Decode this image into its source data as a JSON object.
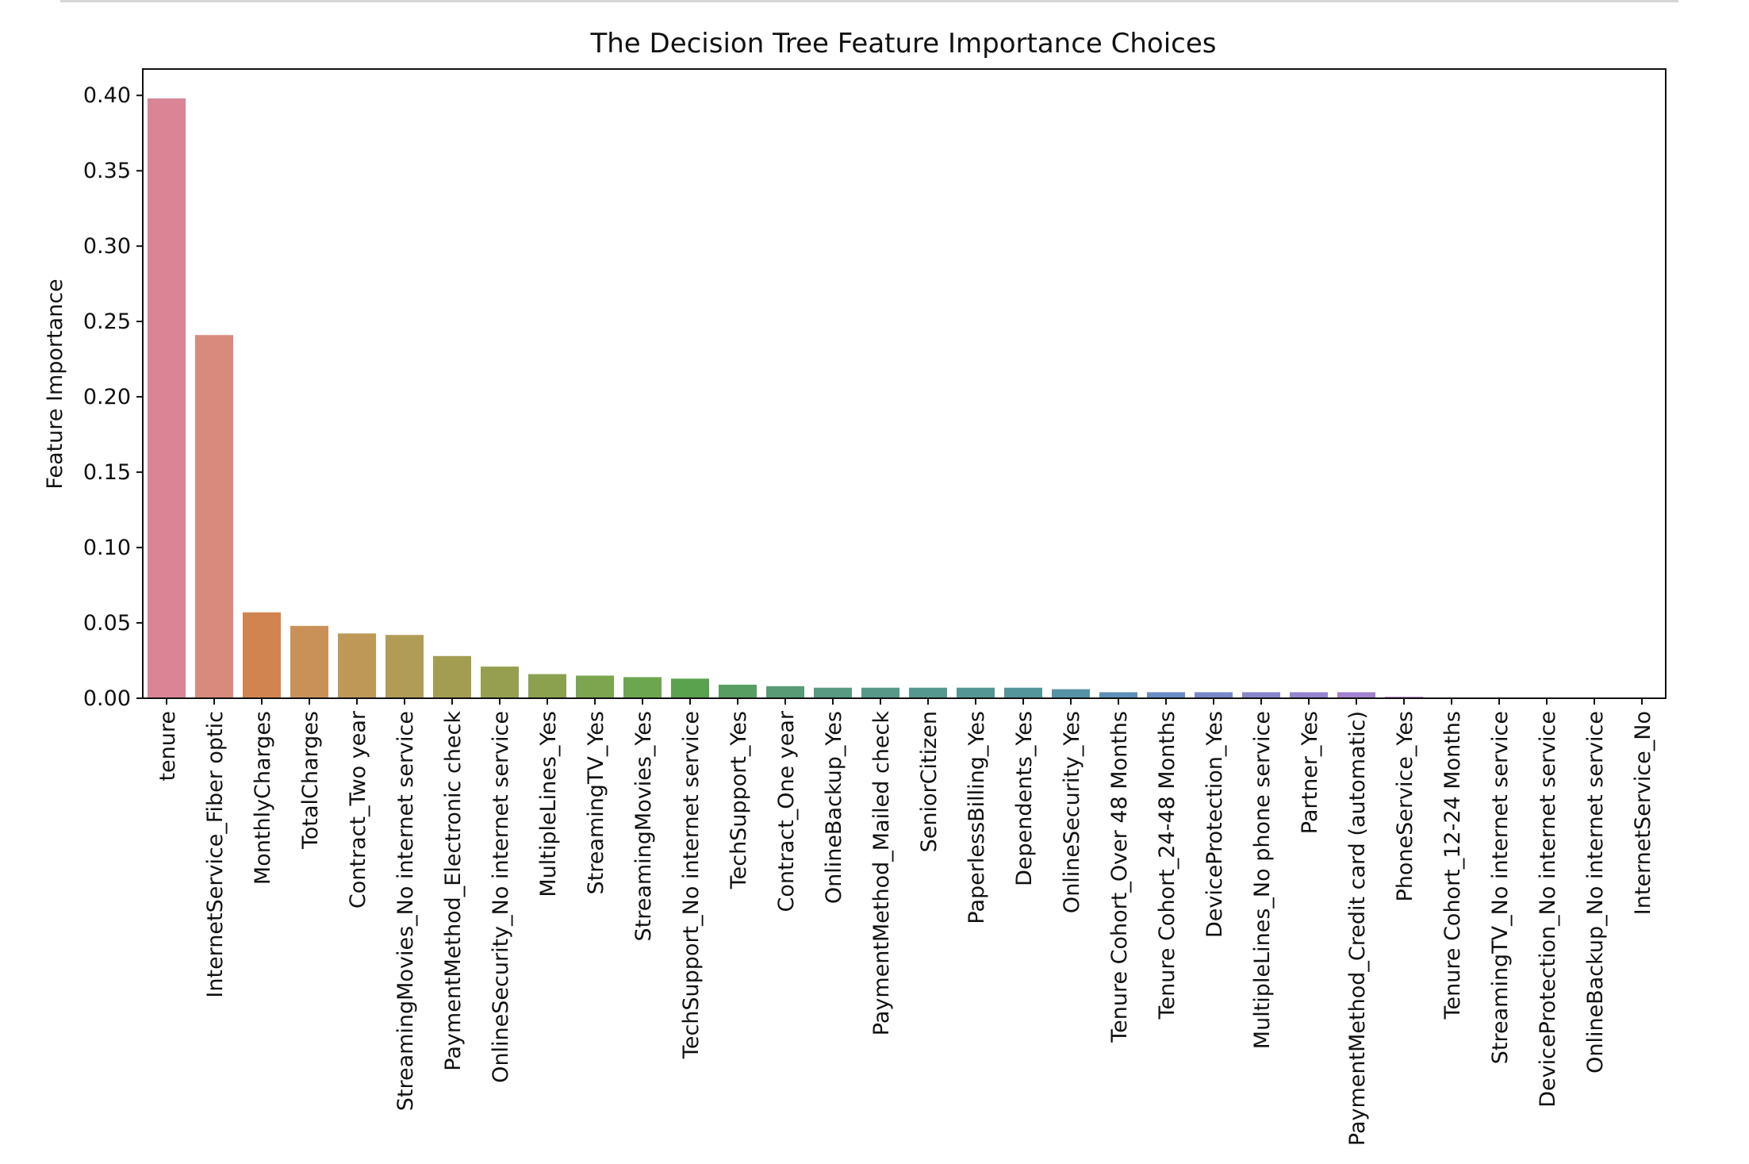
{
  "chart_data": {
    "type": "bar",
    "title": "The Decision Tree Feature Importance Choices",
    "xlabel": "",
    "ylabel": "Feature Importance",
    "ylim": [
      0,
      0.4175
    ],
    "yticks": [
      "0.00",
      "0.05",
      "0.10",
      "0.15",
      "0.20",
      "0.25",
      "0.30",
      "0.35",
      "0.40"
    ],
    "grid": false,
    "legend": "none",
    "categories": [
      "tenure",
      "InternetService_Fiber optic",
      "MonthlyCharges",
      "TotalCharges",
      "Contract_Two year",
      "StreamingMovies_No internet service",
      "PaymentMethod_Electronic check",
      "OnlineSecurity_No internet service",
      "MultipleLines_Yes",
      "StreamingTV_Yes",
      "StreamingMovies_Yes",
      "TechSupport_No internet service",
      "TechSupport_Yes",
      "Contract_One year",
      "OnlineBackup_Yes",
      "PaymentMethod_Mailed check",
      "SeniorCitizen",
      "PaperlessBilling_Yes",
      "Dependents_Yes",
      "OnlineSecurity_Yes",
      "Tenure Cohort_Over 48 Months",
      "Tenure Cohort_24-48 Months",
      "DeviceProtection_Yes",
      "MultipleLines_No phone service",
      "Partner_Yes",
      "PaymentMethod_Credit card (automatic)",
      "PhoneService_Yes",
      "Tenure Cohort_12-24 Months",
      "StreamingTV_No internet service",
      "DeviceProtection_No internet service",
      "OnlineBackup_No internet service",
      "InternetService_No"
    ],
    "values": [
      0.398,
      0.241,
      0.057,
      0.048,
      0.043,
      0.042,
      0.028,
      0.021,
      0.016,
      0.015,
      0.014,
      0.013,
      0.009,
      0.008,
      0.007,
      0.007,
      0.007,
      0.007,
      0.007,
      0.006,
      0.004,
      0.004,
      0.004,
      0.004,
      0.004,
      0.004,
      0.001,
      0.0,
      0.0,
      0.0,
      0.0,
      0.0
    ],
    "colors": [
      "#d98596",
      "#d88a7c",
      "#d1844f",
      "#c99158",
      "#bd9857",
      "#b09c57",
      "#a39d52",
      "#969f4f",
      "#8ba150",
      "#7ca550",
      "#6ca64f",
      "#5aa24e",
      "#589e62",
      "#589b74",
      "#589a82",
      "#579889",
      "#55988f",
      "#549694",
      "#54959b",
      "#5793a6",
      "#5f90ba",
      "#6a8cc4",
      "#7889c7",
      "#8786ca",
      "#9484cd",
      "#a482cf",
      "#b47fce",
      "#c17dc9",
      "#ca7ebf",
      "#d17fb3",
      "#d683a6",
      "#d9849b"
    ]
  }
}
